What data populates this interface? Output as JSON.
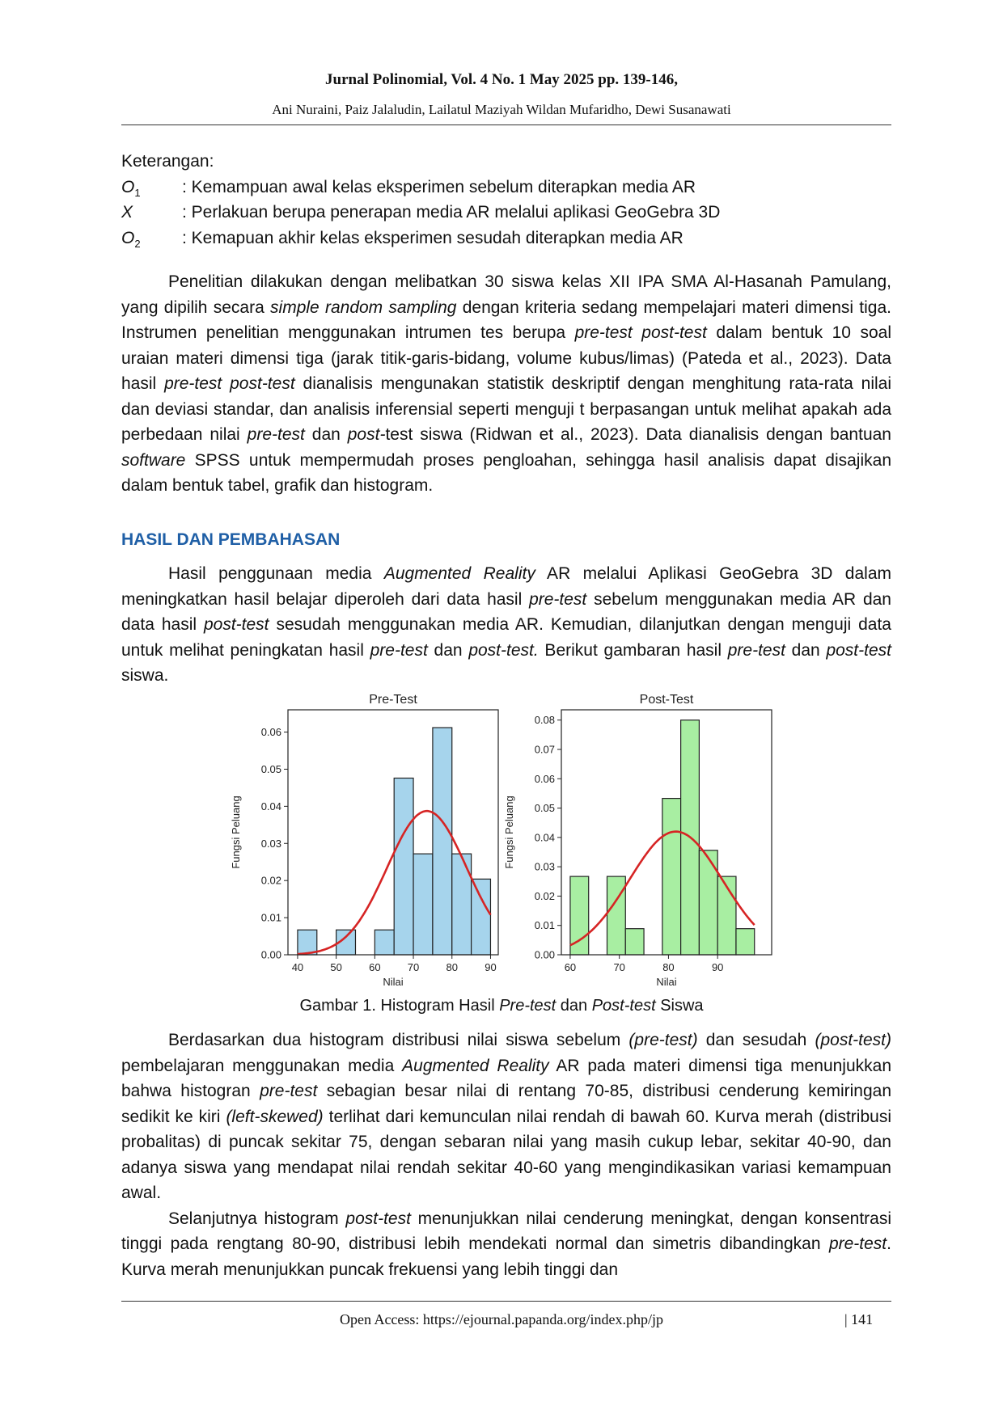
{
  "header": {
    "journal": "Jurnal Polinomial, Vol. 4 No. 1 May 2025 pp. 139-146,",
    "authors": "Ani Nuraini, Paiz Jalaludin, Lailatul Maziyah Wildan Mufaridho, Dewi Susanawati"
  },
  "legend": {
    "title": "Keterangan:",
    "items": [
      {
        "sym": "O",
        "sub": "1",
        "text": ": Kemampuan awal kelas eksperimen sebelum diterapkan media AR"
      },
      {
        "sym": "X",
        "sub": "",
        "text": ": Perlakuan berupa penerapan media AR melalui aplikasi GeoGebra 3D"
      },
      {
        "sym": "O",
        "sub": "2",
        "text": ": Kemapuan akhir kelas eksperimen sesudah diterapkan media AR"
      }
    ]
  },
  "para1": {
    "s1": "Penelitian dilakukan dengan melibatkan 30 siswa kelas XII IPA SMA Al-Hasanah Pamulang, yang dipilih secara ",
    "i1": "simple random sampling",
    "s2": " dengan kriteria sedang mempelajari materi dimensi tiga. Instrumen penelitian menggunakan intrumen tes berupa ",
    "i2": "pre-test post-test",
    "s3": " dalam bentuk 10 soal uraian materi dimensi tiga (jarak titik-garis-bidang, volume kubus/limas) (Pateda et al., 2023).  Data hasil ",
    "i3": "pre-test post-test",
    "s4": " dianalisis mengunakan statistik deskriptif dengan menghitung rata-rata nilai dan deviasi standar, dan analisis inferensial seperti menguji t berpasangan untuk melihat apakah ada perbedaan nilai ",
    "i4": "pre-test",
    "s5": " dan ",
    "i5": "post-",
    "s6": "test siswa (Ridwan et al., 2023).  Data dianalisis dengan bantuan ",
    "i6": "software",
    "s7": " SPSS untuk mempermudah proses pengloahan, sehingga hasil analisis dapat disajikan dalam bentuk tabel, grafik dan histogram."
  },
  "section_title": "HASIL DAN PEMBAHASAN",
  "para2": {
    "s1": "Hasil penggunaan media ",
    "i1": "Augmented Reality",
    "s2": " AR melalui Aplikasi GeoGebra 3D dalam meningkatkan hasil belajar diperoleh dari data hasil ",
    "i2": "pre-test",
    "s3": "  sebelum menggunakan media AR dan data hasil ",
    "i3": "post-test",
    "s4": " sesudah menggunakan media AR. Kemudian, dilanjutkan dengan menguji data untuk melihat peningkatan hasil ",
    "i4": "pre-test",
    "s5": " dan ",
    "i5": "post-test.",
    "s6": " Berikut gambaran hasil ",
    "i6": "pre-test",
    "s7": "  dan ",
    "i7": "post-test",
    "s8": " siswa."
  },
  "chart_data": [
    {
      "type": "bar",
      "title": "Pre-Test",
      "xlabel": "Nilai",
      "ylabel": "Fungsi Peluang",
      "xlim": [
        37.5,
        92
      ],
      "ylim": [
        0,
        0.066
      ],
      "xticks": [
        40,
        50,
        60,
        70,
        80,
        90
      ],
      "yticks": [
        0.0,
        0.01,
        0.02,
        0.03,
        0.04,
        0.05,
        0.06
      ],
      "ytick_decimals": 2,
      "bins": [
        {
          "x0": 40,
          "x1": 45,
          "density": 0.0067
        },
        {
          "x0": 45,
          "x1": 50,
          "density": 0
        },
        {
          "x0": 50,
          "x1": 55,
          "density": 0.0067
        },
        {
          "x0": 55,
          "x1": 60,
          "density": 0
        },
        {
          "x0": 60,
          "x1": 65,
          "density": 0.0067
        },
        {
          "x0": 65,
          "x1": 70,
          "density": 0.0476
        },
        {
          "x0": 70,
          "x1": 75,
          "density": 0.0272
        },
        {
          "x0": 75,
          "x1": 80,
          "density": 0.0612
        },
        {
          "x0": 80,
          "x1": 85,
          "density": 0.0272
        },
        {
          "x0": 85,
          "x1": 90,
          "density": 0.0204
        }
      ],
      "curve": {
        "type": "normal",
        "mean": 73.5,
        "sd": 10.3,
        "x_range": [
          40,
          90
        ]
      },
      "bar_color": "#a6d4ec",
      "curve_color": "#d62424",
      "grid": false
    },
    {
      "type": "bar",
      "title": "Post-Test",
      "xlabel": "Nilai",
      "ylabel": "Fungsi Peluang",
      "xlim": [
        58.2,
        101
      ],
      "ylim": [
        0,
        0.0835
      ],
      "xticks": [
        60,
        70,
        80,
        90
      ],
      "yticks": [
        0.0,
        0.01,
        0.02,
        0.03,
        0.04,
        0.05,
        0.06,
        0.07,
        0.08
      ],
      "ytick_decimals": 2,
      "bins": [
        {
          "x0": 60,
          "x1": 63.75,
          "density": 0.0267
        },
        {
          "x0": 63.75,
          "x1": 67.5,
          "density": 0
        },
        {
          "x0": 67.5,
          "x1": 71.25,
          "density": 0.0267
        },
        {
          "x0": 71.25,
          "x1": 75,
          "density": 0.0089
        },
        {
          "x0": 75,
          "x1": 78.75,
          "density": 0
        },
        {
          "x0": 78.75,
          "x1": 82.5,
          "density": 0.0533
        },
        {
          "x0": 82.5,
          "x1": 86.25,
          "density": 0.08
        },
        {
          "x0": 86.25,
          "x1": 90,
          "density": 0.0356
        },
        {
          "x0": 90,
          "x1": 93.75,
          "density": 0.0267
        },
        {
          "x0": 93.75,
          "x1": 97.5,
          "density": 0.0089
        }
      ],
      "curve": {
        "type": "normal",
        "mean": 81.5,
        "sd": 9.5,
        "x_range": [
          60,
          97.5
        ]
      },
      "bar_color": "#a8eea2",
      "curve_color": "#d62424",
      "grid": false
    }
  ],
  "figure_caption": {
    "s1": "Gambar 1. Histogram Hasil ",
    "i1": "Pre-test",
    "s2": " dan ",
    "i2": "Post-test",
    "s3": " Siswa"
  },
  "para3": {
    "s1": "Berdasarkan dua histogram distribusi nilai siswa sebelum ",
    "i1": "(pre-test)",
    "s2": " dan sesudah ",
    "i2": "(post-test)",
    "s3": " pembelajaran menggunakan media ",
    "i3": "Augmented Reality",
    "s4": " AR pada materi dimensi tiga menunjukkan bahwa histogran ",
    "i4": "pre-test",
    "s5": " sebagian besar nilai di rentang 70-85, distribusi cenderung kemiringan sedikit ke kiri ",
    "i5": "(left-skewed)",
    "s6": " terlihat dari kemunculan nilai rendah di bawah 60. Kurva merah (distribusi probalitas) di puncak sekitar 75, dengan sebaran nilai yang masih cukup lebar, sekitar 40-90, dan adanya siswa yang mendapat nilai rendah sekitar 40-60 yang mengindikasikan variasi kemampuan awal."
  },
  "para4": {
    "s1": "Selanjutnya histogram ",
    "i1": "post-test",
    "s2": " menunjukkan nilai cenderung meningkat, dengan konsentrasi tinggi pada rengtang 80-90, distribusi lebih mendekati normal dan simetris dibandingkan ",
    "i2": "pre-test",
    "s3": ". Kurva merah menunjukkan puncak frekuensi yang lebih tinggi dan"
  },
  "footer": {
    "access": "Open Access: https://ejournal.papanda.org/index.php/jp",
    "page": "| 141"
  }
}
